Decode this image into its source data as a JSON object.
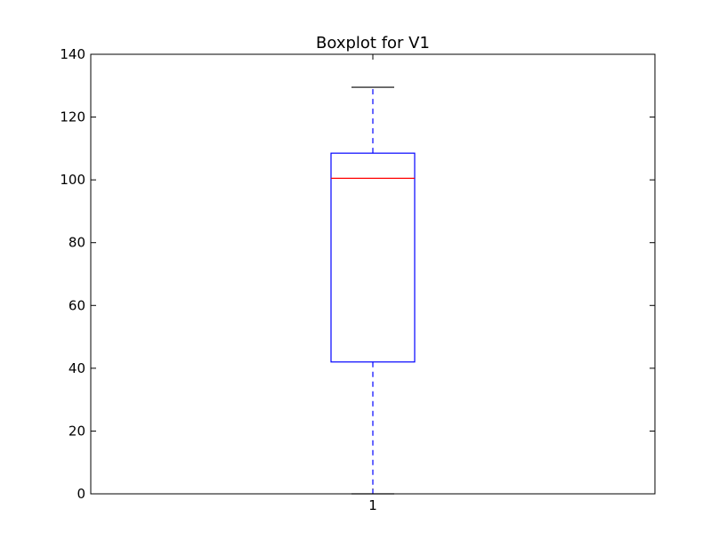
{
  "chart_data": {
    "type": "box",
    "title": "Boxplot for V1",
    "xlabel": "",
    "ylabel": "",
    "categories": [
      "1"
    ],
    "ylim": [
      0,
      140
    ],
    "yticks": [
      0,
      20,
      40,
      60,
      80,
      100,
      120,
      140
    ],
    "box": {
      "whisker_low": 0,
      "q1": 42,
      "median": 100.5,
      "q3": 108.5,
      "whisker_high": 129.5
    },
    "grid": false
  },
  "colors": {
    "box": "#0000ff",
    "median": "#ff0000",
    "whisker": "#0000ff",
    "cap": "#000000",
    "axes": "#000000",
    "background": "#ffffff"
  }
}
